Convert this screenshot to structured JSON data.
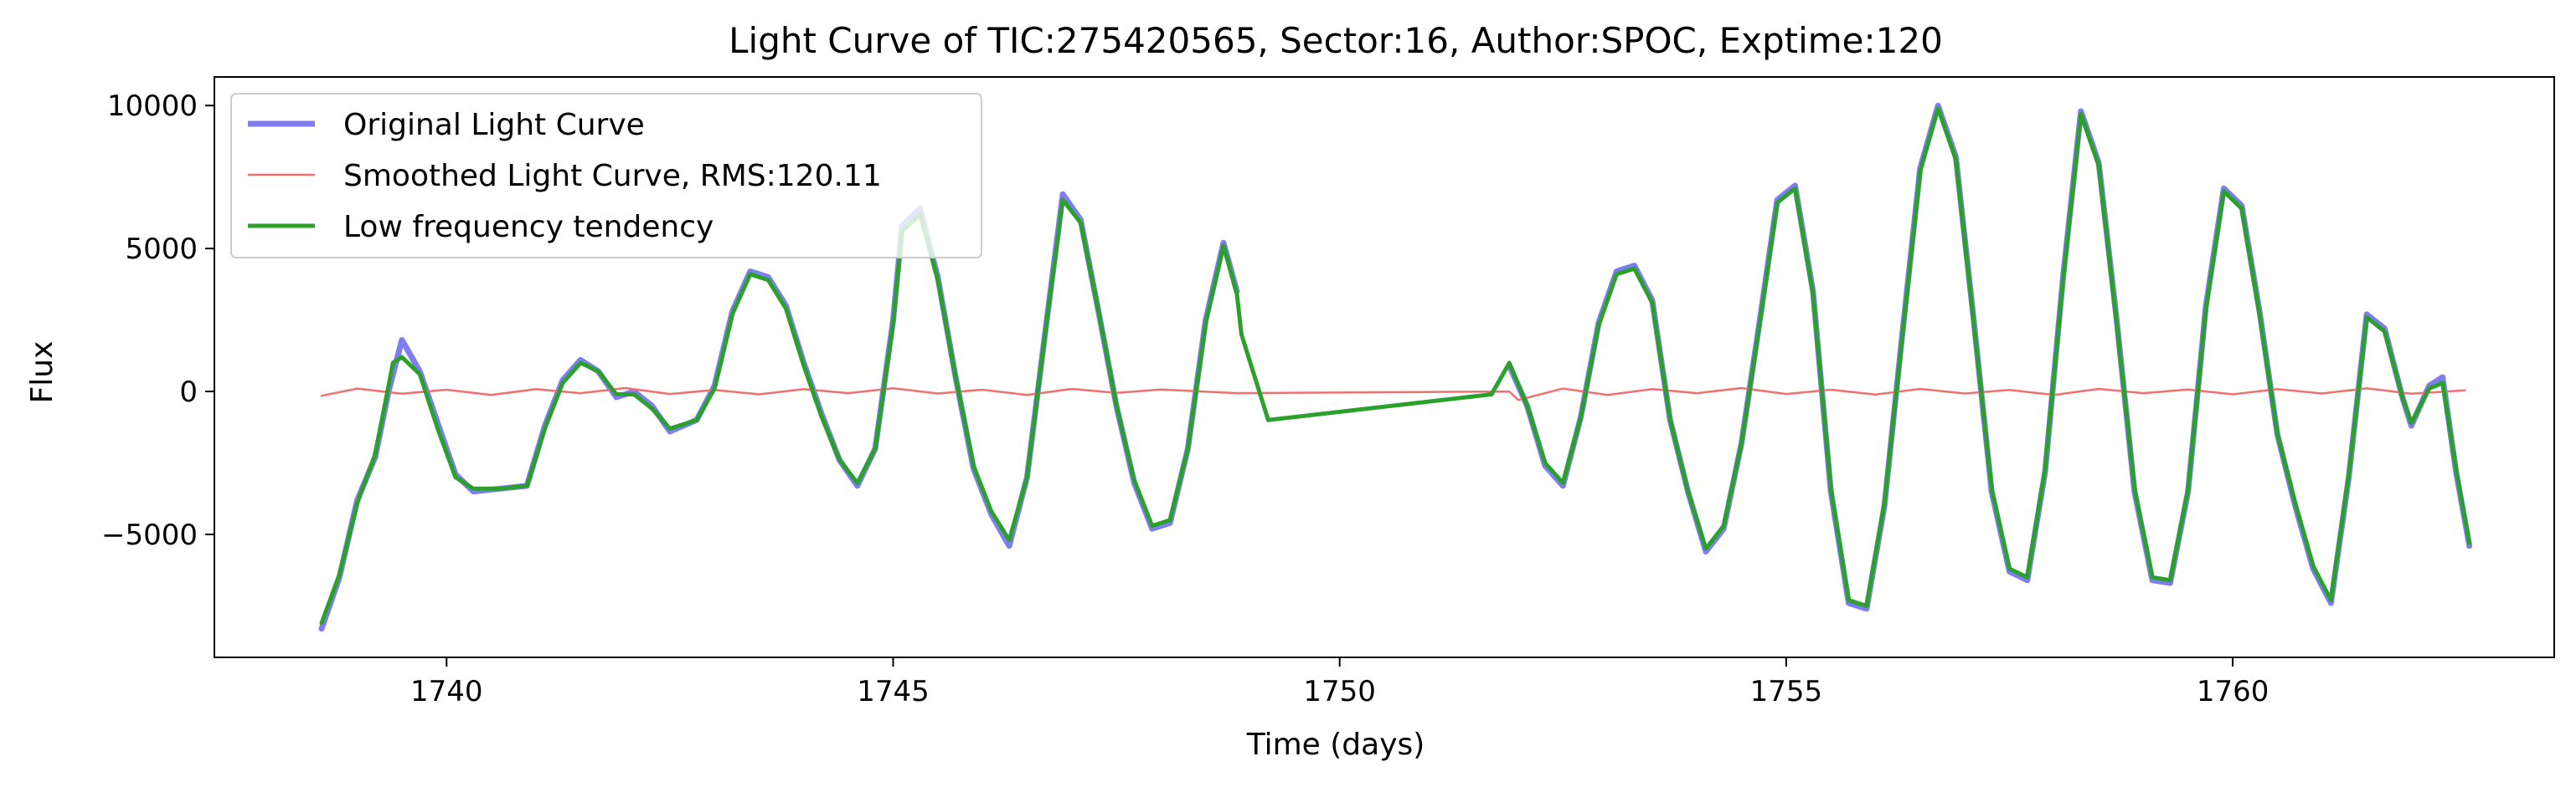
{
  "chart_data": {
    "type": "line",
    "title": "Light Curve of TIC:275420565, Sector:16, Author:SPOC, Exptime:120",
    "xlabel": "Time (days)",
    "ylabel": "Flux",
    "xlim": [
      1737.4,
      1763.6
    ],
    "ylim": [
      -9300,
      11000
    ],
    "xticks": [
      1740,
      1745,
      1750,
      1755,
      1760
    ],
    "xtick_labels": [
      "1740",
      "1745",
      "1750",
      "1755",
      "1760"
    ],
    "yticks": [
      -5000,
      0,
      5000,
      10000
    ],
    "ytick_labels": [
      "−5000",
      "0",
      "5000",
      "10000"
    ],
    "grid": false,
    "legend_position": "top-left",
    "gap": [
      1748.9,
      1751.9
    ],
    "series": [
      {
        "name": "Original Light Curve",
        "color": "#7070f0",
        "points": [
          [
            1738.6,
            -8300
          ],
          [
            1738.8,
            -6500
          ],
          [
            1739.0,
            -3800
          ],
          [
            1739.2,
            -2300
          ],
          [
            1739.35,
            0
          ],
          [
            1739.5,
            1800
          ],
          [
            1739.7,
            700
          ],
          [
            1739.9,
            -1100
          ],
          [
            1740.1,
            -2900
          ],
          [
            1740.3,
            -3500
          ],
          [
            1740.6,
            -3400
          ],
          [
            1740.9,
            -3300
          ],
          [
            1741.1,
            -1200
          ],
          [
            1741.3,
            400
          ],
          [
            1741.5,
            1100
          ],
          [
            1741.7,
            700
          ],
          [
            1741.9,
            -200
          ],
          [
            1742.1,
            0
          ],
          [
            1742.3,
            -500
          ],
          [
            1742.5,
            -1400
          ],
          [
            1742.8,
            -1000
          ],
          [
            1743.0,
            200
          ],
          [
            1743.2,
            2800
          ],
          [
            1743.4,
            4200
          ],
          [
            1743.6,
            4000
          ],
          [
            1743.8,
            3000
          ],
          [
            1744.0,
            1000
          ],
          [
            1744.2,
            -800
          ],
          [
            1744.4,
            -2400
          ],
          [
            1744.6,
            -3300
          ],
          [
            1744.8,
            -2000
          ],
          [
            1745.0,
            2500
          ],
          [
            1745.1,
            5800
          ],
          [
            1745.3,
            6400
          ],
          [
            1745.5,
            4000
          ],
          [
            1745.7,
            500
          ],
          [
            1745.9,
            -2700
          ],
          [
            1746.1,
            -4300
          ],
          [
            1746.3,
            -5400
          ],
          [
            1746.5,
            -3000
          ],
          [
            1746.7,
            2000
          ],
          [
            1746.9,
            6900
          ],
          [
            1747.1,
            6000
          ],
          [
            1747.3,
            2800
          ],
          [
            1747.5,
            -500
          ],
          [
            1747.7,
            -3200
          ],
          [
            1747.9,
            -4800
          ],
          [
            1748.1,
            -4600
          ],
          [
            1748.3,
            -2000
          ],
          [
            1748.5,
            2500
          ],
          [
            1748.7,
            5200
          ],
          [
            1748.85,
            3500
          ],
          [
            1751.9,
            900
          ],
          [
            1752.1,
            -500
          ],
          [
            1752.3,
            -2600
          ],
          [
            1752.5,
            -3300
          ],
          [
            1752.7,
            -900
          ],
          [
            1752.9,
            2400
          ],
          [
            1753.1,
            4200
          ],
          [
            1753.3,
            4400
          ],
          [
            1753.5,
            3200
          ],
          [
            1753.7,
            -1000
          ],
          [
            1753.9,
            -3500
          ],
          [
            1754.1,
            -5600
          ],
          [
            1754.3,
            -4800
          ],
          [
            1754.5,
            -1800
          ],
          [
            1754.7,
            2400
          ],
          [
            1754.9,
            6700
          ],
          [
            1755.1,
            7200
          ],
          [
            1755.3,
            3500
          ],
          [
            1755.5,
            -3500
          ],
          [
            1755.7,
            -7400
          ],
          [
            1755.9,
            -7600
          ],
          [
            1756.1,
            -4000
          ],
          [
            1756.3,
            2000
          ],
          [
            1756.5,
            7800
          ],
          [
            1756.7,
            10000
          ],
          [
            1756.9,
            8200
          ],
          [
            1757.1,
            2500
          ],
          [
            1757.3,
            -3500
          ],
          [
            1757.5,
            -6300
          ],
          [
            1757.7,
            -6600
          ],
          [
            1757.9,
            -2800
          ],
          [
            1758.1,
            4000
          ],
          [
            1758.3,
            9800
          ],
          [
            1758.5,
            8000
          ],
          [
            1758.7,
            2500
          ],
          [
            1758.9,
            -3500
          ],
          [
            1759.1,
            -6600
          ],
          [
            1759.3,
            -6700
          ],
          [
            1759.5,
            -3500
          ],
          [
            1759.7,
            3000
          ],
          [
            1759.9,
            7100
          ],
          [
            1760.1,
            6500
          ],
          [
            1760.3,
            2800
          ],
          [
            1760.5,
            -1500
          ],
          [
            1760.7,
            -4000
          ],
          [
            1760.9,
            -6200
          ],
          [
            1761.1,
            -7400
          ],
          [
            1761.3,
            -3000
          ],
          [
            1761.5,
            2700
          ],
          [
            1761.7,
            2200
          ],
          [
            1761.9,
            -200
          ],
          [
            1762.0,
            -1200
          ],
          [
            1762.2,
            200
          ],
          [
            1762.35,
            500
          ],
          [
            1762.5,
            -2800
          ],
          [
            1762.65,
            -5400
          ]
        ]
      },
      {
        "name": "Smoothed Light Curve, RMS:120.11",
        "color": "#f07070",
        "points": [
          [
            1738.6,
            -150
          ],
          [
            1739.0,
            100
          ],
          [
            1739.5,
            -80
          ],
          [
            1740.0,
            60
          ],
          [
            1740.5,
            -120
          ],
          [
            1741.0,
            80
          ],
          [
            1741.5,
            -60
          ],
          [
            1742.0,
            120
          ],
          [
            1742.5,
            -90
          ],
          [
            1743.0,
            50
          ],
          [
            1743.5,
            -100
          ],
          [
            1744.0,
            80
          ],
          [
            1744.5,
            -60
          ],
          [
            1745.0,
            110
          ],
          [
            1745.5,
            -70
          ],
          [
            1746.0,
            60
          ],
          [
            1746.5,
            -120
          ],
          [
            1747.0,
            90
          ],
          [
            1747.5,
            -50
          ],
          [
            1748.0,
            70
          ],
          [
            1748.85,
            -60
          ],
          [
            1751.9,
            0
          ],
          [
            1752.0,
            -300
          ],
          [
            1752.5,
            100
          ],
          [
            1753.0,
            -120
          ],
          [
            1753.5,
            80
          ],
          [
            1754.0,
            -60
          ],
          [
            1754.5,
            120
          ],
          [
            1755.0,
            -90
          ],
          [
            1755.5,
            60
          ],
          [
            1756.0,
            -110
          ],
          [
            1756.5,
            90
          ],
          [
            1757.0,
            -70
          ],
          [
            1757.5,
            50
          ],
          [
            1758.0,
            -120
          ],
          [
            1758.5,
            90
          ],
          [
            1759.0,
            -60
          ],
          [
            1759.5,
            70
          ],
          [
            1760.0,
            -100
          ],
          [
            1760.5,
            80
          ],
          [
            1761.0,
            -70
          ],
          [
            1761.5,
            110
          ],
          [
            1762.0,
            -80
          ],
          [
            1762.6,
            40
          ]
        ]
      },
      {
        "name": "Low frequency tendency",
        "color": "#2ca02c",
        "points": [
          [
            1738.6,
            -8100
          ],
          [
            1738.8,
            -6400
          ],
          [
            1739.0,
            -3900
          ],
          [
            1739.2,
            -2200
          ],
          [
            1739.4,
            1000
          ],
          [
            1739.5,
            1200
          ],
          [
            1739.7,
            600
          ],
          [
            1739.9,
            -1300
          ],
          [
            1740.1,
            -3000
          ],
          [
            1740.3,
            -3400
          ],
          [
            1740.6,
            -3400
          ],
          [
            1740.9,
            -3300
          ],
          [
            1741.1,
            -1300
          ],
          [
            1741.3,
            300
          ],
          [
            1741.5,
            1000
          ],
          [
            1741.7,
            700
          ],
          [
            1741.9,
            -100
          ],
          [
            1742.1,
            -100
          ],
          [
            1742.3,
            -600
          ],
          [
            1742.5,
            -1300
          ],
          [
            1742.8,
            -1000
          ],
          [
            1743.0,
            100
          ],
          [
            1743.2,
            2700
          ],
          [
            1743.4,
            4100
          ],
          [
            1743.6,
            3900
          ],
          [
            1743.8,
            2900
          ],
          [
            1744.0,
            900
          ],
          [
            1744.2,
            -900
          ],
          [
            1744.4,
            -2400
          ],
          [
            1744.6,
            -3200
          ],
          [
            1744.8,
            -2000
          ],
          [
            1745.0,
            2400
          ],
          [
            1745.1,
            5600
          ],
          [
            1745.3,
            6200
          ],
          [
            1745.5,
            3900
          ],
          [
            1745.7,
            500
          ],
          [
            1745.9,
            -2600
          ],
          [
            1746.1,
            -4200
          ],
          [
            1746.3,
            -5200
          ],
          [
            1746.5,
            -3000
          ],
          [
            1746.7,
            2000
          ],
          [
            1746.9,
            6700
          ],
          [
            1747.1,
            5900
          ],
          [
            1747.3,
            2800
          ],
          [
            1747.5,
            -500
          ],
          [
            1747.7,
            -3100
          ],
          [
            1747.9,
            -4700
          ],
          [
            1748.1,
            -4500
          ],
          [
            1748.3,
            -2000
          ],
          [
            1748.5,
            2400
          ],
          [
            1748.7,
            5100
          ],
          [
            1748.85,
            3400
          ],
          [
            1748.9,
            2000
          ],
          [
            1749.2,
            -1000
          ],
          [
            1751.7,
            -100
          ],
          [
            1751.9,
            1000
          ],
          [
            1752.1,
            -500
          ],
          [
            1752.3,
            -2500
          ],
          [
            1752.5,
            -3200
          ],
          [
            1752.7,
            -900
          ],
          [
            1752.9,
            2300
          ],
          [
            1753.1,
            4100
          ],
          [
            1753.3,
            4300
          ],
          [
            1753.5,
            3100
          ],
          [
            1753.7,
            -1000
          ],
          [
            1753.9,
            -3500
          ],
          [
            1754.1,
            -5500
          ],
          [
            1754.3,
            -4700
          ],
          [
            1754.5,
            -1800
          ],
          [
            1754.7,
            2300
          ],
          [
            1754.9,
            6600
          ],
          [
            1755.1,
            7100
          ],
          [
            1755.3,
            3400
          ],
          [
            1755.5,
            -3400
          ],
          [
            1755.7,
            -7300
          ],
          [
            1755.9,
            -7500
          ],
          [
            1756.1,
            -3900
          ],
          [
            1756.3,
            1900
          ],
          [
            1756.5,
            7700
          ],
          [
            1756.7,
            9900
          ],
          [
            1756.9,
            8100
          ],
          [
            1757.1,
            2400
          ],
          [
            1757.3,
            -3400
          ],
          [
            1757.5,
            -6200
          ],
          [
            1757.7,
            -6500
          ],
          [
            1757.9,
            -2700
          ],
          [
            1758.1,
            3900
          ],
          [
            1758.3,
            9700
          ],
          [
            1758.5,
            7900
          ],
          [
            1758.7,
            2400
          ],
          [
            1758.9,
            -3400
          ],
          [
            1759.1,
            -6500
          ],
          [
            1759.3,
            -6600
          ],
          [
            1759.5,
            -3400
          ],
          [
            1759.7,
            2900
          ],
          [
            1759.9,
            7000
          ],
          [
            1760.1,
            6400
          ],
          [
            1760.3,
            2700
          ],
          [
            1760.5,
            -1500
          ],
          [
            1760.7,
            -3900
          ],
          [
            1760.9,
            -6100
          ],
          [
            1761.1,
            -7300
          ],
          [
            1761.3,
            -2900
          ],
          [
            1761.5,
            2600
          ],
          [
            1761.7,
            2100
          ],
          [
            1761.9,
            -200
          ],
          [
            1762.0,
            -1100
          ],
          [
            1762.2,
            100
          ],
          [
            1762.35,
            300
          ],
          [
            1762.5,
            -2700
          ],
          [
            1762.65,
            -5300
          ]
        ]
      }
    ]
  }
}
